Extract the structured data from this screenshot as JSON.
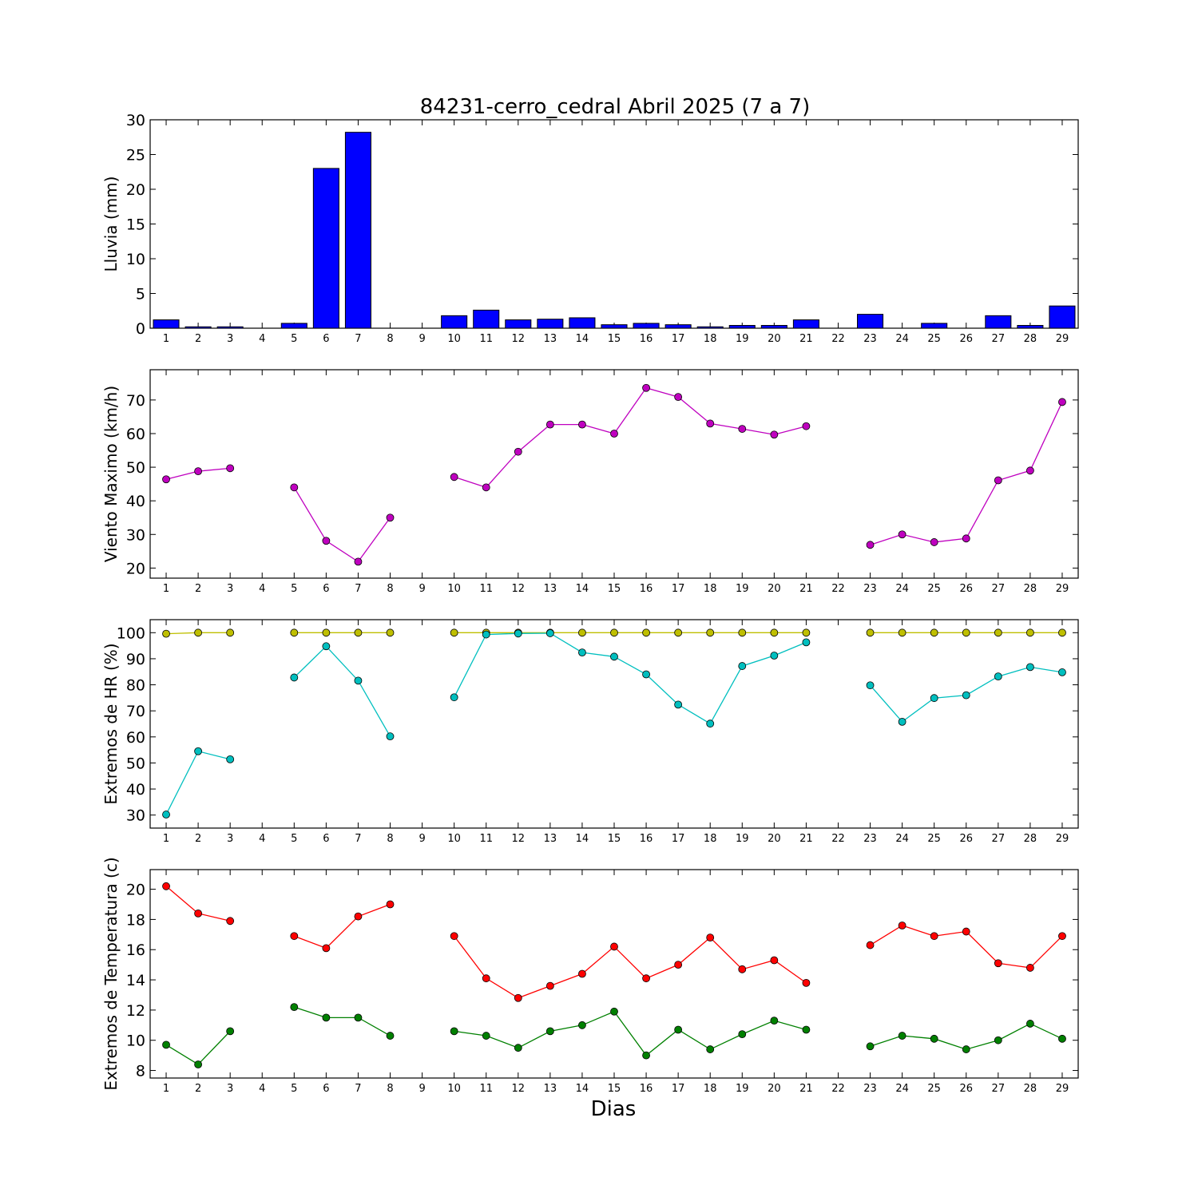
{
  "figure": {
    "title": "84231-cerro_cedral Abril 2025  (7 a 7)",
    "xlabel": "Dias"
  },
  "chart_data": [
    {
      "type": "bar",
      "ylabel": "Lluvia (mm)",
      "ylim": [
        0,
        30
      ],
      "yticks": [
        0,
        5,
        10,
        15,
        20,
        25,
        30
      ],
      "x": [
        1,
        2,
        3,
        4,
        5,
        6,
        7,
        8,
        9,
        10,
        11,
        12,
        13,
        14,
        15,
        16,
        17,
        18,
        19,
        20,
        21,
        22,
        23,
        24,
        25,
        26,
        27,
        28,
        29
      ],
      "series": [
        {
          "color": "#0000ff",
          "values": [
            1.2,
            0.2,
            0.2,
            0,
            0.7,
            23.0,
            28.2,
            0,
            0,
            1.8,
            2.6,
            1.2,
            1.3,
            1.5,
            0.5,
            0.7,
            0.5,
            0.2,
            0.4,
            0.4,
            1.2,
            0,
            2.0,
            0,
            0.7,
            0,
            1.8,
            0.4,
            3.2
          ]
        }
      ]
    },
    {
      "type": "line",
      "ylabel": "Viento Maximo (km/h)",
      "ylim": [
        17,
        79
      ],
      "yticks": [
        20,
        30,
        40,
        50,
        60,
        70
      ],
      "x": [
        1,
        2,
        3,
        4,
        5,
        6,
        7,
        8,
        9,
        10,
        11,
        12,
        13,
        14,
        15,
        16,
        17,
        18,
        19,
        20,
        21,
        22,
        23,
        24,
        25,
        26,
        27,
        28,
        29
      ],
      "series": [
        {
          "color": "#bf00bf",
          "values": [
            46.4,
            48.8,
            49.7,
            null,
            44.0,
            28.1,
            21.9,
            35.0,
            null,
            47.1,
            44.0,
            54.6,
            62.7,
            62.7,
            60.0,
            73.6,
            70.9,
            63.0,
            61.4,
            59.7,
            62.2,
            null,
            26.9,
            30.0,
            27.7,
            28.8,
            46.1,
            49.0,
            69.4
          ]
        }
      ]
    },
    {
      "type": "line",
      "ylabel": "Extremos de HR (%)",
      "ylim": [
        25,
        105
      ],
      "yticks": [
        30,
        40,
        50,
        60,
        70,
        80,
        90,
        100
      ],
      "x": [
        1,
        2,
        3,
        4,
        5,
        6,
        7,
        8,
        9,
        10,
        11,
        12,
        13,
        14,
        15,
        16,
        17,
        18,
        19,
        20,
        21,
        22,
        23,
        24,
        25,
        26,
        27,
        28,
        29
      ],
      "series": [
        {
          "color": "#bfbf00",
          "values": [
            99.6,
            100,
            100,
            null,
            100,
            100,
            100,
            100,
            null,
            100,
            100,
            100,
            100,
            100,
            100,
            100,
            100,
            100,
            100,
            100,
            100,
            null,
            100,
            100,
            100,
            100,
            100,
            100,
            100
          ]
        },
        {
          "color": "#00bfbf",
          "values": [
            30.2,
            54.5,
            51.4,
            null,
            82.8,
            94.8,
            81.6,
            60.2,
            null,
            75.2,
            99.3,
            99.7,
            99.8,
            92.4,
            90.8,
            84.0,
            72.4,
            65.1,
            87.2,
            91.2,
            96.3,
            null,
            79.8,
            65.8,
            74.9,
            76.0,
            83.2,
            86.8,
            84.8
          ]
        }
      ]
    },
    {
      "type": "line",
      "ylabel": "Extremos de Temperatura (c)",
      "ylim": [
        7.5,
        21.3
      ],
      "yticks": [
        8,
        10,
        12,
        14,
        16,
        18,
        20
      ],
      "x": [
        1,
        2,
        3,
        4,
        5,
        6,
        7,
        8,
        9,
        10,
        11,
        12,
        13,
        14,
        15,
        16,
        17,
        18,
        19,
        20,
        21,
        22,
        23,
        24,
        25,
        26,
        27,
        28,
        29
      ],
      "series": [
        {
          "color": "#ff0000",
          "values": [
            20.2,
            18.4,
            17.9,
            null,
            16.9,
            16.1,
            18.2,
            19.0,
            null,
            16.9,
            14.1,
            12.8,
            13.6,
            14.4,
            16.2,
            14.1,
            15.0,
            16.8,
            14.7,
            15.3,
            13.8,
            null,
            16.3,
            17.6,
            16.9,
            17.2,
            15.1,
            14.8,
            16.9
          ]
        },
        {
          "color": "#008000",
          "values": [
            9.7,
            8.4,
            10.6,
            null,
            12.2,
            11.5,
            11.5,
            10.3,
            null,
            10.6,
            10.3,
            9.5,
            10.6,
            11.0,
            11.9,
            9.0,
            10.7,
            9.4,
            10.4,
            11.3,
            10.7,
            null,
            9.6,
            10.3,
            10.1,
            9.4,
            10.0,
            11.1,
            10.1
          ]
        }
      ]
    }
  ]
}
